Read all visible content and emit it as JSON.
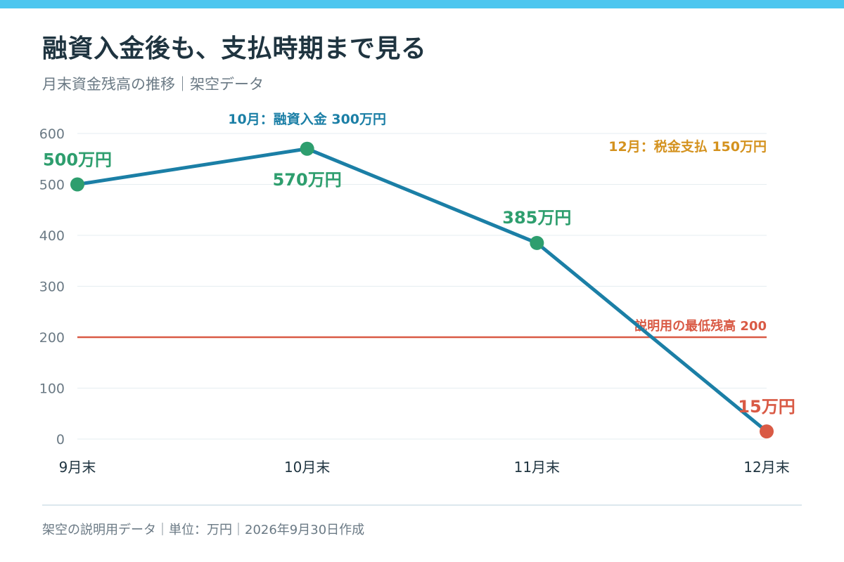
{
  "header": {
    "title": "融資入金後も、支払時期まで見る",
    "subtitle": "月末資金残高の推移｜架空データ"
  },
  "footer": {
    "text": "架空の説明用データ｜単位：万円｜2026年9月30日作成"
  },
  "colors": {
    "accent_bar": "#4cc6ef",
    "line": "#1b7fa6",
    "point_ok": "#2e9e6e",
    "point_low": "#d95a45",
    "threshold": "#d95a45",
    "tax_note": "#d4921e",
    "grid": "#e6edf1",
    "axis_text": "#6b7a85"
  },
  "chart_data": {
    "type": "line",
    "title": "融資入金後も、支払時期まで見る",
    "subtitle": "月末資金残高の推移｜架空データ",
    "categories": [
      "9月末",
      "10月末",
      "11月末",
      "12月末"
    ],
    "series": [
      {
        "values": [
          500,
          570,
          385,
          15
        ],
        "data_labels": [
          "500万円",
          "570万円",
          "385万円",
          "15万円"
        ]
      }
    ],
    "y_ticks": [
      0,
      100,
      200,
      300,
      400,
      500,
      600
    ],
    "ylim": [
      0,
      600
    ],
    "grid": true,
    "reference_line": {
      "value": 200,
      "label": "説明用の最低残高 200"
    },
    "annotations": [
      {
        "text": "10月：融資入金 300万円",
        "category": "10月末"
      },
      {
        "text": "12月：税金支払 150万円",
        "category": "12月末"
      }
    ]
  }
}
